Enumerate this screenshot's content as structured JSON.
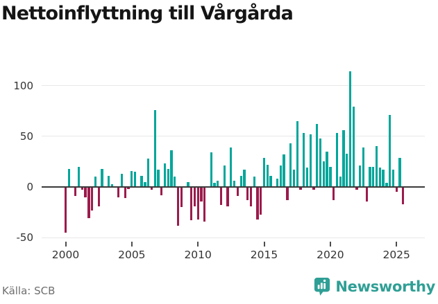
{
  "title": "Nettoinflyttning till Vårgårda",
  "source": "Källa: SCB",
  "brand": {
    "name": "Newsworthy",
    "icon": "bar-chart-badge-icon"
  },
  "colors": {
    "positive": "#00a69a",
    "negative": "#9b1b4b",
    "zero_axis": "#3a3a3a",
    "grid": "#e8e8e8",
    "tick_text": "#333333",
    "muted_text": "#6f6f6f",
    "brand_teal": "#2f9f95"
  },
  "chart_data": {
    "type": "bar",
    "title": "Nettoinflyttning till Vårgårda",
    "xlabel": "",
    "ylabel": "",
    "x_unit": "quarter",
    "frequency": "quarterly",
    "grid": "horizontal",
    "legend": "none",
    "ylim": [
      -50,
      115
    ],
    "yticks": [
      100,
      50,
      0,
      -50
    ],
    "xticks": [
      "2000",
      "2005",
      "2010",
      "2015",
      "2020",
      "2025"
    ],
    "series_name": "Nettoinflyttning",
    "quarters": [
      "2000Q1",
      "2000Q2",
      "2000Q3",
      "2000Q4",
      "2001Q1",
      "2001Q2",
      "2001Q3",
      "2001Q4",
      "2002Q1",
      "2002Q2",
      "2002Q3",
      "2002Q4",
      "2003Q1",
      "2003Q2",
      "2003Q3",
      "2003Q4",
      "2004Q1",
      "2004Q2",
      "2004Q3",
      "2004Q4",
      "2005Q1",
      "2005Q2",
      "2005Q3",
      "2005Q4",
      "2006Q1",
      "2006Q2",
      "2006Q3",
      "2006Q4",
      "2007Q1",
      "2007Q2",
      "2007Q3",
      "2007Q4",
      "2008Q1",
      "2008Q2",
      "2008Q3",
      "2008Q4",
      "2009Q1",
      "2009Q2",
      "2009Q3",
      "2009Q4",
      "2010Q1",
      "2010Q2",
      "2010Q3",
      "2010Q4",
      "2011Q1",
      "2011Q2",
      "2011Q3",
      "2011Q4",
      "2012Q1",
      "2012Q2",
      "2012Q3",
      "2012Q4",
      "2013Q1",
      "2013Q2",
      "2013Q3",
      "2013Q4",
      "2014Q1",
      "2014Q2",
      "2014Q3",
      "2014Q4",
      "2015Q1",
      "2015Q2",
      "2015Q3",
      "2015Q4",
      "2016Q1",
      "2016Q2",
      "2016Q3",
      "2016Q4",
      "2017Q1",
      "2017Q2",
      "2017Q3",
      "2017Q4",
      "2018Q1",
      "2018Q2",
      "2018Q3",
      "2018Q4",
      "2019Q1",
      "2019Q2",
      "2019Q3",
      "2019Q4",
      "2020Q1",
      "2020Q2",
      "2020Q3",
      "2020Q4",
      "2021Q1",
      "2021Q2",
      "2021Q3",
      "2021Q4",
      "2022Q1",
      "2022Q2",
      "2022Q3",
      "2022Q4",
      "2023Q1",
      "2023Q2",
      "2023Q3",
      "2023Q4",
      "2024Q1",
      "2024Q2",
      "2024Q3",
      "2024Q4",
      "2025Q1",
      "2025Q2",
      "2025Q3"
    ],
    "values": [
      -45,
      18,
      0,
      -9,
      20,
      -3,
      -10,
      -31,
      -23,
      10,
      -19,
      18,
      0,
      11,
      3,
      0,
      -10,
      13,
      -11,
      -2,
      16,
      15,
      0,
      11,
      5,
      28,
      -3,
      76,
      17,
      -8,
      23,
      18,
      36,
      10,
      -38,
      -20,
      0,
      5,
      -33,
      -19,
      -32,
      -14,
      -34,
      0,
      34,
      4,
      6,
      -18,
      21,
      -19,
      39,
      6,
      -9,
      11,
      17,
      -13,
      -19,
      10,
      -32,
      -27,
      29,
      22,
      11,
      0,
      8,
      21,
      32,
      -13,
      43,
      17,
      65,
      -3,
      53,
      19,
      52,
      -3,
      62,
      48,
      25,
      35,
      20,
      -13,
      53,
      10,
      56,
      33,
      114,
      79,
      -3,
      21,
      39,
      -14,
      20,
      20,
      40,
      19,
      17,
      4,
      71,
      17,
      -5,
      29,
      -17
    ]
  }
}
